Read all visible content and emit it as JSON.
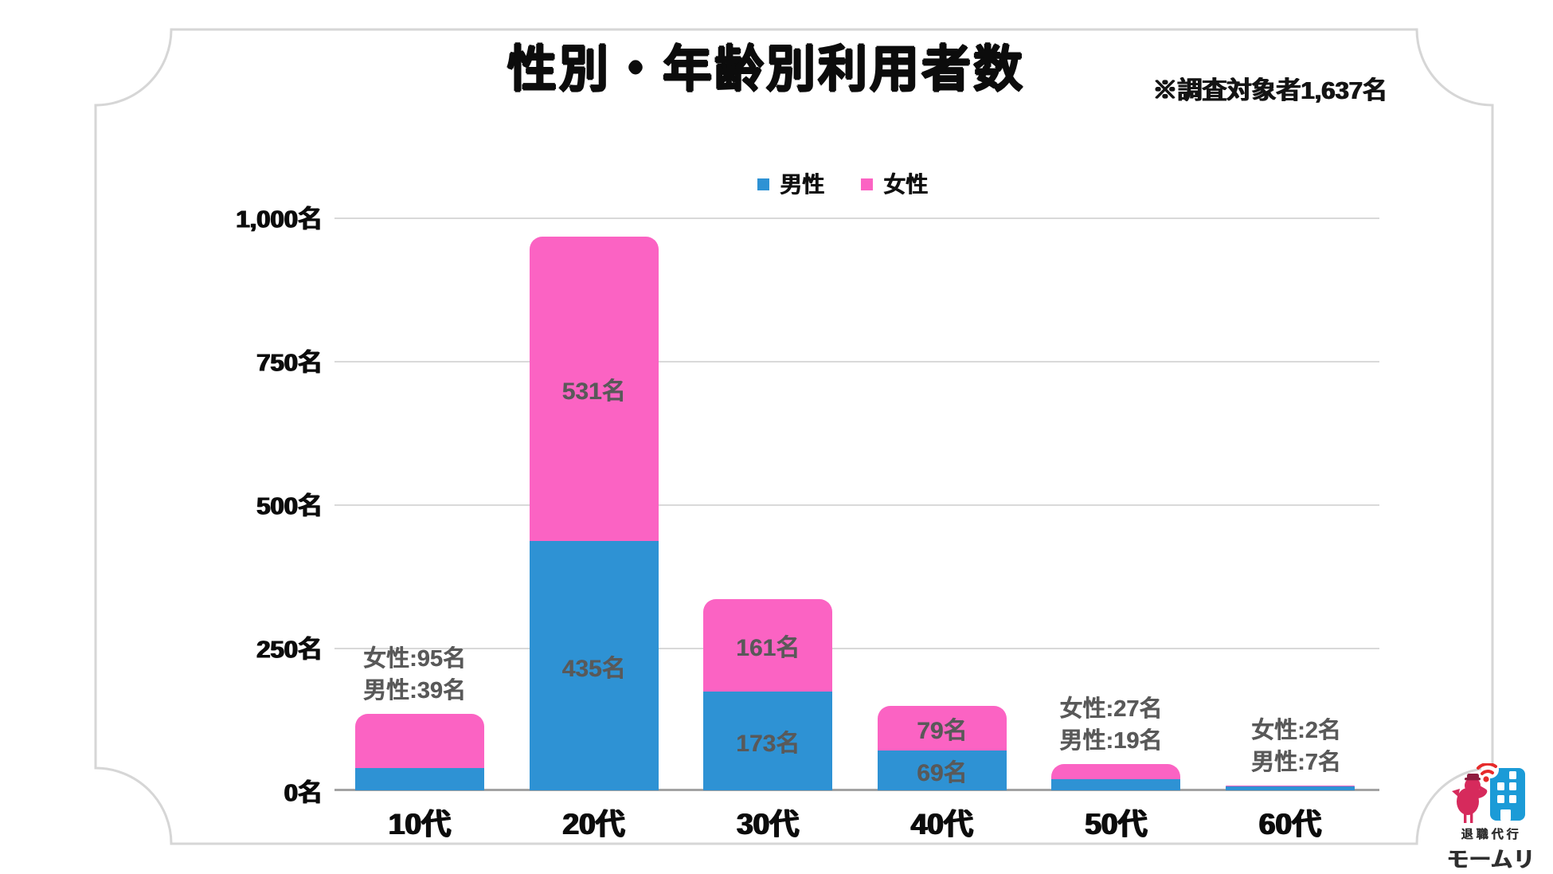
{
  "title": "性別・年齢別利用者数",
  "note": "※調査対象者1,637名",
  "y_axis": {
    "ticks": [
      "1,000名",
      "750名",
      "500名",
      "250名",
      "0名"
    ]
  },
  "chart_data": {
    "type": "bar",
    "stacked": true,
    "categories": [
      "10代",
      "20代",
      "30代",
      "40代",
      "50代",
      "60代"
    ],
    "series": [
      {
        "name": "男性",
        "color": "#2e92d4",
        "values": [
          39,
          435,
          173,
          69,
          19,
          7
        ]
      },
      {
        "name": "女性",
        "color": "#fb63c3",
        "values": [
          95,
          531,
          161,
          79,
          27,
          2
        ]
      }
    ],
    "ylim": [
      0,
      1000
    ],
    "grid": true,
    "legend_position": "top",
    "bar_labels": [
      {
        "mode": "outside",
        "female": "女性:95名",
        "male": "男性:39名"
      },
      {
        "mode": "inside",
        "female": "531名",
        "male": "435名"
      },
      {
        "mode": "inside",
        "female": "161名",
        "male": "173名"
      },
      {
        "mode": "inside",
        "female": "79名",
        "male": "69名"
      },
      {
        "mode": "outside",
        "female": "女性:27名",
        "male": "男性:19名"
      },
      {
        "mode": "outside",
        "female": "女性:2名",
        "male": "男性:7名"
      }
    ],
    "label_color": "#595959"
  },
  "logo": {
    "line1": "退職代行",
    "line2": "モームリ",
    "bird_color": "#d62a5c",
    "building_color": "#1b9bd7",
    "wifi_color": "#e62b2b"
  }
}
